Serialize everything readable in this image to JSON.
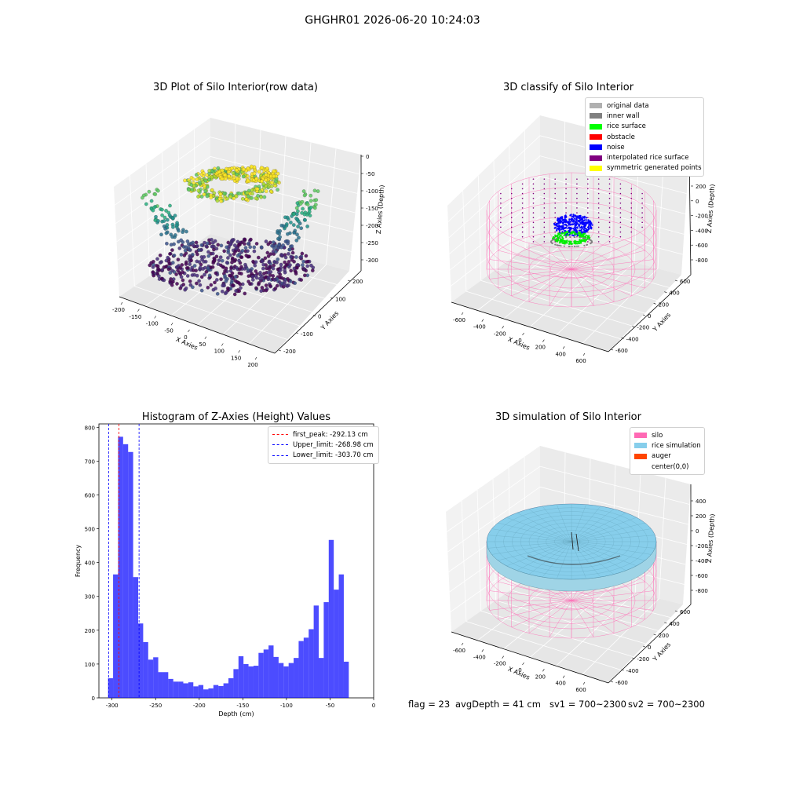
{
  "suptitle": "GHGHR01 2026-06-20 10:24:03",
  "panels": {
    "raw": {
      "title": "3D Plot of Silo Interior(row data)"
    },
    "classify": {
      "title": "3D classify of Silo Interior"
    },
    "hist": {
      "title": "Histogram of Z-Axies (Height) Values"
    },
    "sim": {
      "title": "3D simulation of Silo Interior"
    }
  },
  "footer": {
    "flag": "flag = 23",
    "avg": "avgDepth = 41 cm",
    "sv1": "sv1 = 700~2300",
    "sv2": "sv2 = 700~2300"
  },
  "chart_data": [
    {
      "type": "scatter",
      "subtype": "3d",
      "title": "3D Plot of Silo Interior(row data)",
      "xlabel": "X Axies",
      "ylabel": "Y Axies",
      "zlabel": "Z Axies (Depth)",
      "xticks": [
        -200,
        -150,
        -100,
        -50,
        0,
        50,
        100,
        150,
        200
      ],
      "yticks": [
        -200,
        -100,
        0,
        100,
        200
      ],
      "zticks": [
        0,
        -50,
        -100,
        -150,
        -200,
        -250,
        -300
      ],
      "colormap": "viridis"
    },
    {
      "type": "scatter",
      "subtype": "3d",
      "title": "3D classify of Silo Interior",
      "xlabel": "X Axies",
      "ylabel": "Y Axies",
      "zlabel": "Z Axies (Depth)",
      "xticks": [
        -600,
        -400,
        -200,
        0,
        200,
        400,
        600
      ],
      "yticks": [
        -600,
        -400,
        -200,
        0,
        200,
        400,
        600
      ],
      "zticks": [
        200,
        0,
        -200,
        -400,
        -600,
        -800
      ],
      "legend": [
        {
          "label": "original data",
          "color": "#b0b0b0"
        },
        {
          "label": "inner wall",
          "color": "#808080"
        },
        {
          "label": "rice surface",
          "color": "#00ff00"
        },
        {
          "label": "obstacle",
          "color": "#ff0000"
        },
        {
          "label": "noise",
          "color": "#0000ff"
        },
        {
          "label": "interpolated rice surface",
          "color": "#800080"
        },
        {
          "label": "symmetric generated points",
          "color": "#ffff00"
        }
      ]
    },
    {
      "type": "bar",
      "subtype": "histogram",
      "title": "Histogram of Z-Axies (Height) Values",
      "xlabel": "Depth (cm)",
      "ylabel": "Frequency",
      "xlim": [
        -315,
        0
      ],
      "ylim": [
        0,
        810
      ],
      "xticks": [
        -300,
        -250,
        -200,
        -150,
        -100,
        -50,
        0
      ],
      "yticks": [
        0,
        100,
        200,
        300,
        400,
        500,
        600,
        700,
        800
      ],
      "bar_color": "#0000ff",
      "bin_start": -304.5,
      "bin_width": 5.75,
      "values": [
        58,
        365,
        772,
        750,
        727,
        357,
        220,
        165,
        113,
        120,
        76,
        76,
        56,
        48,
        48,
        43,
        46,
        34,
        38,
        25,
        28,
        38,
        35,
        43,
        58,
        85,
        123,
        100,
        93,
        95,
        133,
        143,
        155,
        121,
        103,
        93,
        103,
        118,
        168,
        178,
        203,
        273,
        118,
        283,
        467,
        320,
        365,
        107
      ],
      "vlines": [
        {
          "label": "first_peak: -292.13 cm",
          "x": -292.13,
          "color": "#ff0000"
        },
        {
          "label": "Upper_limit: -268.98 cm",
          "x": -268.98,
          "color": "#0000ff"
        },
        {
          "label": "Lower_limit: -303.70 cm",
          "x": -303.7,
          "color": "#0000ff"
        }
      ]
    },
    {
      "type": "other",
      "subtype": "3d-surface",
      "title": "3D simulation of Silo Interior",
      "xlabel": "X Axies",
      "ylabel": "Y Axies",
      "zlabel": "Z Axies (Depth)",
      "xticks": [
        -600,
        -400,
        -200,
        0,
        200,
        400,
        600
      ],
      "yticks": [
        -600,
        -400,
        -200,
        0,
        200,
        400,
        600
      ],
      "zticks": [
        400,
        200,
        0,
        -200,
        -400,
        -600,
        -800
      ],
      "legend": [
        {
          "label": "silo",
          "color": "#ff69b4"
        },
        {
          "label": "rice simulation",
          "color": "#87ceeb"
        },
        {
          "label": "auger",
          "color": "#ff4500"
        },
        {
          "label": "center(0,0)",
          "color": ""
        }
      ]
    }
  ]
}
